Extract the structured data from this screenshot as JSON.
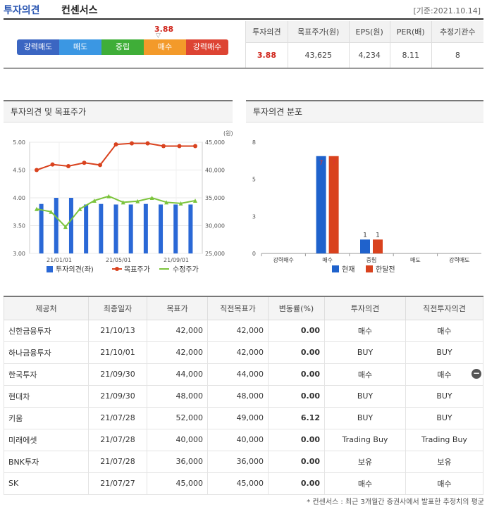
{
  "header": {
    "title": "투자의견",
    "subtitle": "컨센서스",
    "date": "[기준:2021.10.14]"
  },
  "scale": {
    "labels": [
      "강력매도",
      "매도",
      "중립",
      "매수",
      "강력매수"
    ],
    "score": "3.88",
    "marker": "▽"
  },
  "summary": {
    "headers": [
      "투자의견",
      "목표주가(원)",
      "EPS(원)",
      "PER(배)",
      "추정기관수"
    ],
    "values": [
      "3.88",
      "43,625",
      "4,234",
      "8.11",
      "8"
    ]
  },
  "panel1": {
    "title": "투자의견 및 목표주가"
  },
  "panel2": {
    "title": "투자의견 분포"
  },
  "chart_data": [
    {
      "type": "bar+line",
      "title": "투자의견 및 목표주가",
      "x_ticks": [
        "21/01/01",
        "21/05/01",
        "21/09/01"
      ],
      "y_left": {
        "min": 3.0,
        "max": 5.0,
        "ticks": [
          "3.00",
          "3.50",
          "4.00",
          "4.50",
          "5.00"
        ]
      },
      "y_right": {
        "min": 25000,
        "max": 45000,
        "ticks": [
          "25,000",
          "30,000",
          "35,000",
          "40,000",
          "45,000"
        ],
        "unit": "(원)"
      },
      "series": [
        {
          "name": "투자의견(좌)",
          "kind": "bar",
          "axis": "left",
          "color": "#2a68d6",
          "values": [
            3.89,
            4.0,
            4.0,
            3.88,
            3.89,
            3.88,
            3.88,
            3.89,
            3.88,
            3.88,
            3.88
          ]
        },
        {
          "name": "목표주가",
          "kind": "line",
          "axis": "right",
          "color": "#d9421e",
          "values": [
            40000,
            41000,
            40700,
            41300,
            40900,
            44600,
            44800,
            44800,
            44300,
            44300,
            44300
          ]
        },
        {
          "name": "수정주가",
          "kind": "line",
          "axis": "right",
          "color": "#7cc43c",
          "values": [
            33000,
            32500,
            29800,
            33000,
            34500,
            35300,
            34200,
            34400,
            35000,
            34200,
            34000,
            34500
          ]
        }
      ]
    },
    {
      "type": "bar",
      "title": "투자의견 분포",
      "categories": [
        "강력매수",
        "매수",
        "중립",
        "매도",
        "강력매도"
      ],
      "ylim": [
        0,
        8
      ],
      "y_ticks": [
        "0",
        "3",
        "5",
        "8"
      ],
      "series": [
        {
          "name": "현재",
          "color": "#1f62cc",
          "values": [
            0,
            7,
            1,
            0,
            0
          ]
        },
        {
          "name": "한달전",
          "color": "#d9421e",
          "values": [
            0,
            7,
            1,
            0,
            0
          ]
        }
      ]
    }
  ],
  "brokers": {
    "headers": [
      "제공처",
      "최종일자",
      "목표가",
      "직전목표가",
      "변동률(%)",
      "투자의견",
      "직전투자의견"
    ],
    "rows": [
      [
        "신한금융투자",
        "21/10/13",
        "42,000",
        "42,000",
        "0.00",
        "매수",
        "매수"
      ],
      [
        "하나금융투자",
        "21/10/01",
        "42,000",
        "42,000",
        "0.00",
        "BUY",
        "BUY"
      ],
      [
        "한국투자",
        "21/09/30",
        "44,000",
        "44,000",
        "0.00",
        "매수",
        "매수"
      ],
      [
        "현대차",
        "21/09/30",
        "48,000",
        "48,000",
        "0.00",
        "BUY",
        "BUY"
      ],
      [
        "키움",
        "21/07/28",
        "52,000",
        "49,000",
        "6.12",
        "BUY",
        "BUY"
      ],
      [
        "미래에셋",
        "21/07/28",
        "40,000",
        "40,000",
        "0.00",
        "Trading Buy",
        "Trading Buy"
      ],
      [
        "BNK투자",
        "21/07/28",
        "36,000",
        "36,000",
        "0.00",
        "보유",
        "보유"
      ],
      [
        "SK",
        "21/07/27",
        "45,000",
        "45,000",
        "0.00",
        "매수",
        "매수"
      ]
    ]
  },
  "minus_button": "−",
  "footnote": "* 컨센서스 : 최근 3개월간 증권사에서 발표한 추정치의 평균"
}
